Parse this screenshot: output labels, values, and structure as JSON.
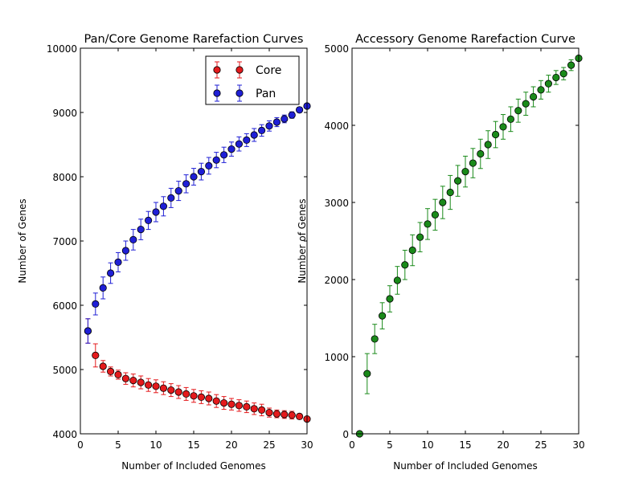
{
  "chart_data": [
    {
      "type": "scatter",
      "title": "Pan/Core Genome Rarefaction Curves",
      "xlabel": "Number of Included Genomes",
      "ylabel": "Number of Genes",
      "xlim": [
        0,
        30
      ],
      "ylim": [
        4000,
        10000
      ],
      "xticks": [
        0,
        5,
        10,
        15,
        20,
        25,
        30
      ],
      "yticks": [
        4000,
        5000,
        6000,
        7000,
        8000,
        9000,
        10000
      ],
      "grid": false,
      "legend": "top-right",
      "series": [
        {
          "name": "Core",
          "color": "#e41a1c",
          "x": [
            1,
            2,
            3,
            4,
            5,
            6,
            7,
            8,
            9,
            10,
            11,
            12,
            13,
            14,
            15,
            16,
            17,
            18,
            19,
            20,
            21,
            22,
            23,
            24,
            25,
            26,
            27,
            28,
            29,
            30
          ],
          "y": [
            5600,
            5220,
            5050,
            4970,
            4920,
            4860,
            4830,
            4800,
            4760,
            4740,
            4710,
            4680,
            4650,
            4620,
            4590,
            4570,
            4550,
            4510,
            4480,
            4460,
            4440,
            4420,
            4390,
            4370,
            4330,
            4310,
            4300,
            4290,
            4270,
            4230
          ],
          "err": [
            190,
            180,
            90,
            70,
            70,
            90,
            100,
            100,
            100,
            100,
            100,
            100,
            100,
            100,
            100,
            100,
            100,
            100,
            100,
            90,
            90,
            90,
            90,
            90,
            70,
            60,
            60,
            60,
            40,
            20
          ]
        },
        {
          "name": "Pan",
          "color": "#1f1fd6",
          "x": [
            1,
            2,
            3,
            4,
            5,
            6,
            7,
            8,
            9,
            10,
            11,
            12,
            13,
            14,
            15,
            16,
            17,
            18,
            19,
            20,
            21,
            22,
            23,
            24,
            25,
            26,
            27,
            28,
            29,
            30
          ],
          "y": [
            5600,
            6020,
            6270,
            6500,
            6670,
            6850,
            7020,
            7180,
            7320,
            7450,
            7540,
            7670,
            7780,
            7890,
            8000,
            8080,
            8170,
            8260,
            8340,
            8430,
            8510,
            8570,
            8650,
            8720,
            8790,
            8850,
            8900,
            8960,
            9040,
            9100
          ],
          "err": [
            190,
            170,
            170,
            160,
            150,
            150,
            160,
            160,
            140,
            150,
            150,
            150,
            150,
            140,
            130,
            130,
            130,
            120,
            120,
            110,
            110,
            100,
            100,
            90,
            80,
            70,
            60,
            50,
            40,
            20
          ]
        }
      ]
    },
    {
      "type": "scatter",
      "title": "Accessory Genome Rarefaction Curve",
      "xlabel": "Number of Included Genomes",
      "ylabel": "Number of Genes",
      "xlim": [
        0,
        30
      ],
      "ylim": [
        0,
        5000
      ],
      "xticks": [
        0,
        5,
        10,
        15,
        20,
        25,
        30
      ],
      "yticks": [
        0,
        1000,
        2000,
        3000,
        4000,
        5000
      ],
      "grid": false,
      "series": [
        {
          "name": "",
          "color": "#1a8a1a",
          "x": [
            1,
            2,
            3,
            4,
            5,
            6,
            7,
            8,
            9,
            10,
            11,
            12,
            13,
            14,
            15,
            16,
            17,
            18,
            19,
            20,
            21,
            22,
            23,
            24,
            25,
            26,
            27,
            28,
            29,
            30
          ],
          "y": [
            0,
            780,
            1230,
            1530,
            1750,
            1990,
            2190,
            2380,
            2550,
            2720,
            2840,
            3000,
            3130,
            3280,
            3400,
            3510,
            3630,
            3750,
            3880,
            3980,
            4080,
            4190,
            4280,
            4370,
            4460,
            4540,
            4620,
            4670,
            4780,
            4870
          ],
          "err": [
            0,
            260,
            190,
            170,
            170,
            180,
            190,
            200,
            190,
            200,
            200,
            210,
            220,
            200,
            200,
            190,
            190,
            180,
            170,
            160,
            160,
            150,
            150,
            130,
            120,
            110,
            90,
            80,
            70,
            20
          ]
        }
      ]
    }
  ]
}
